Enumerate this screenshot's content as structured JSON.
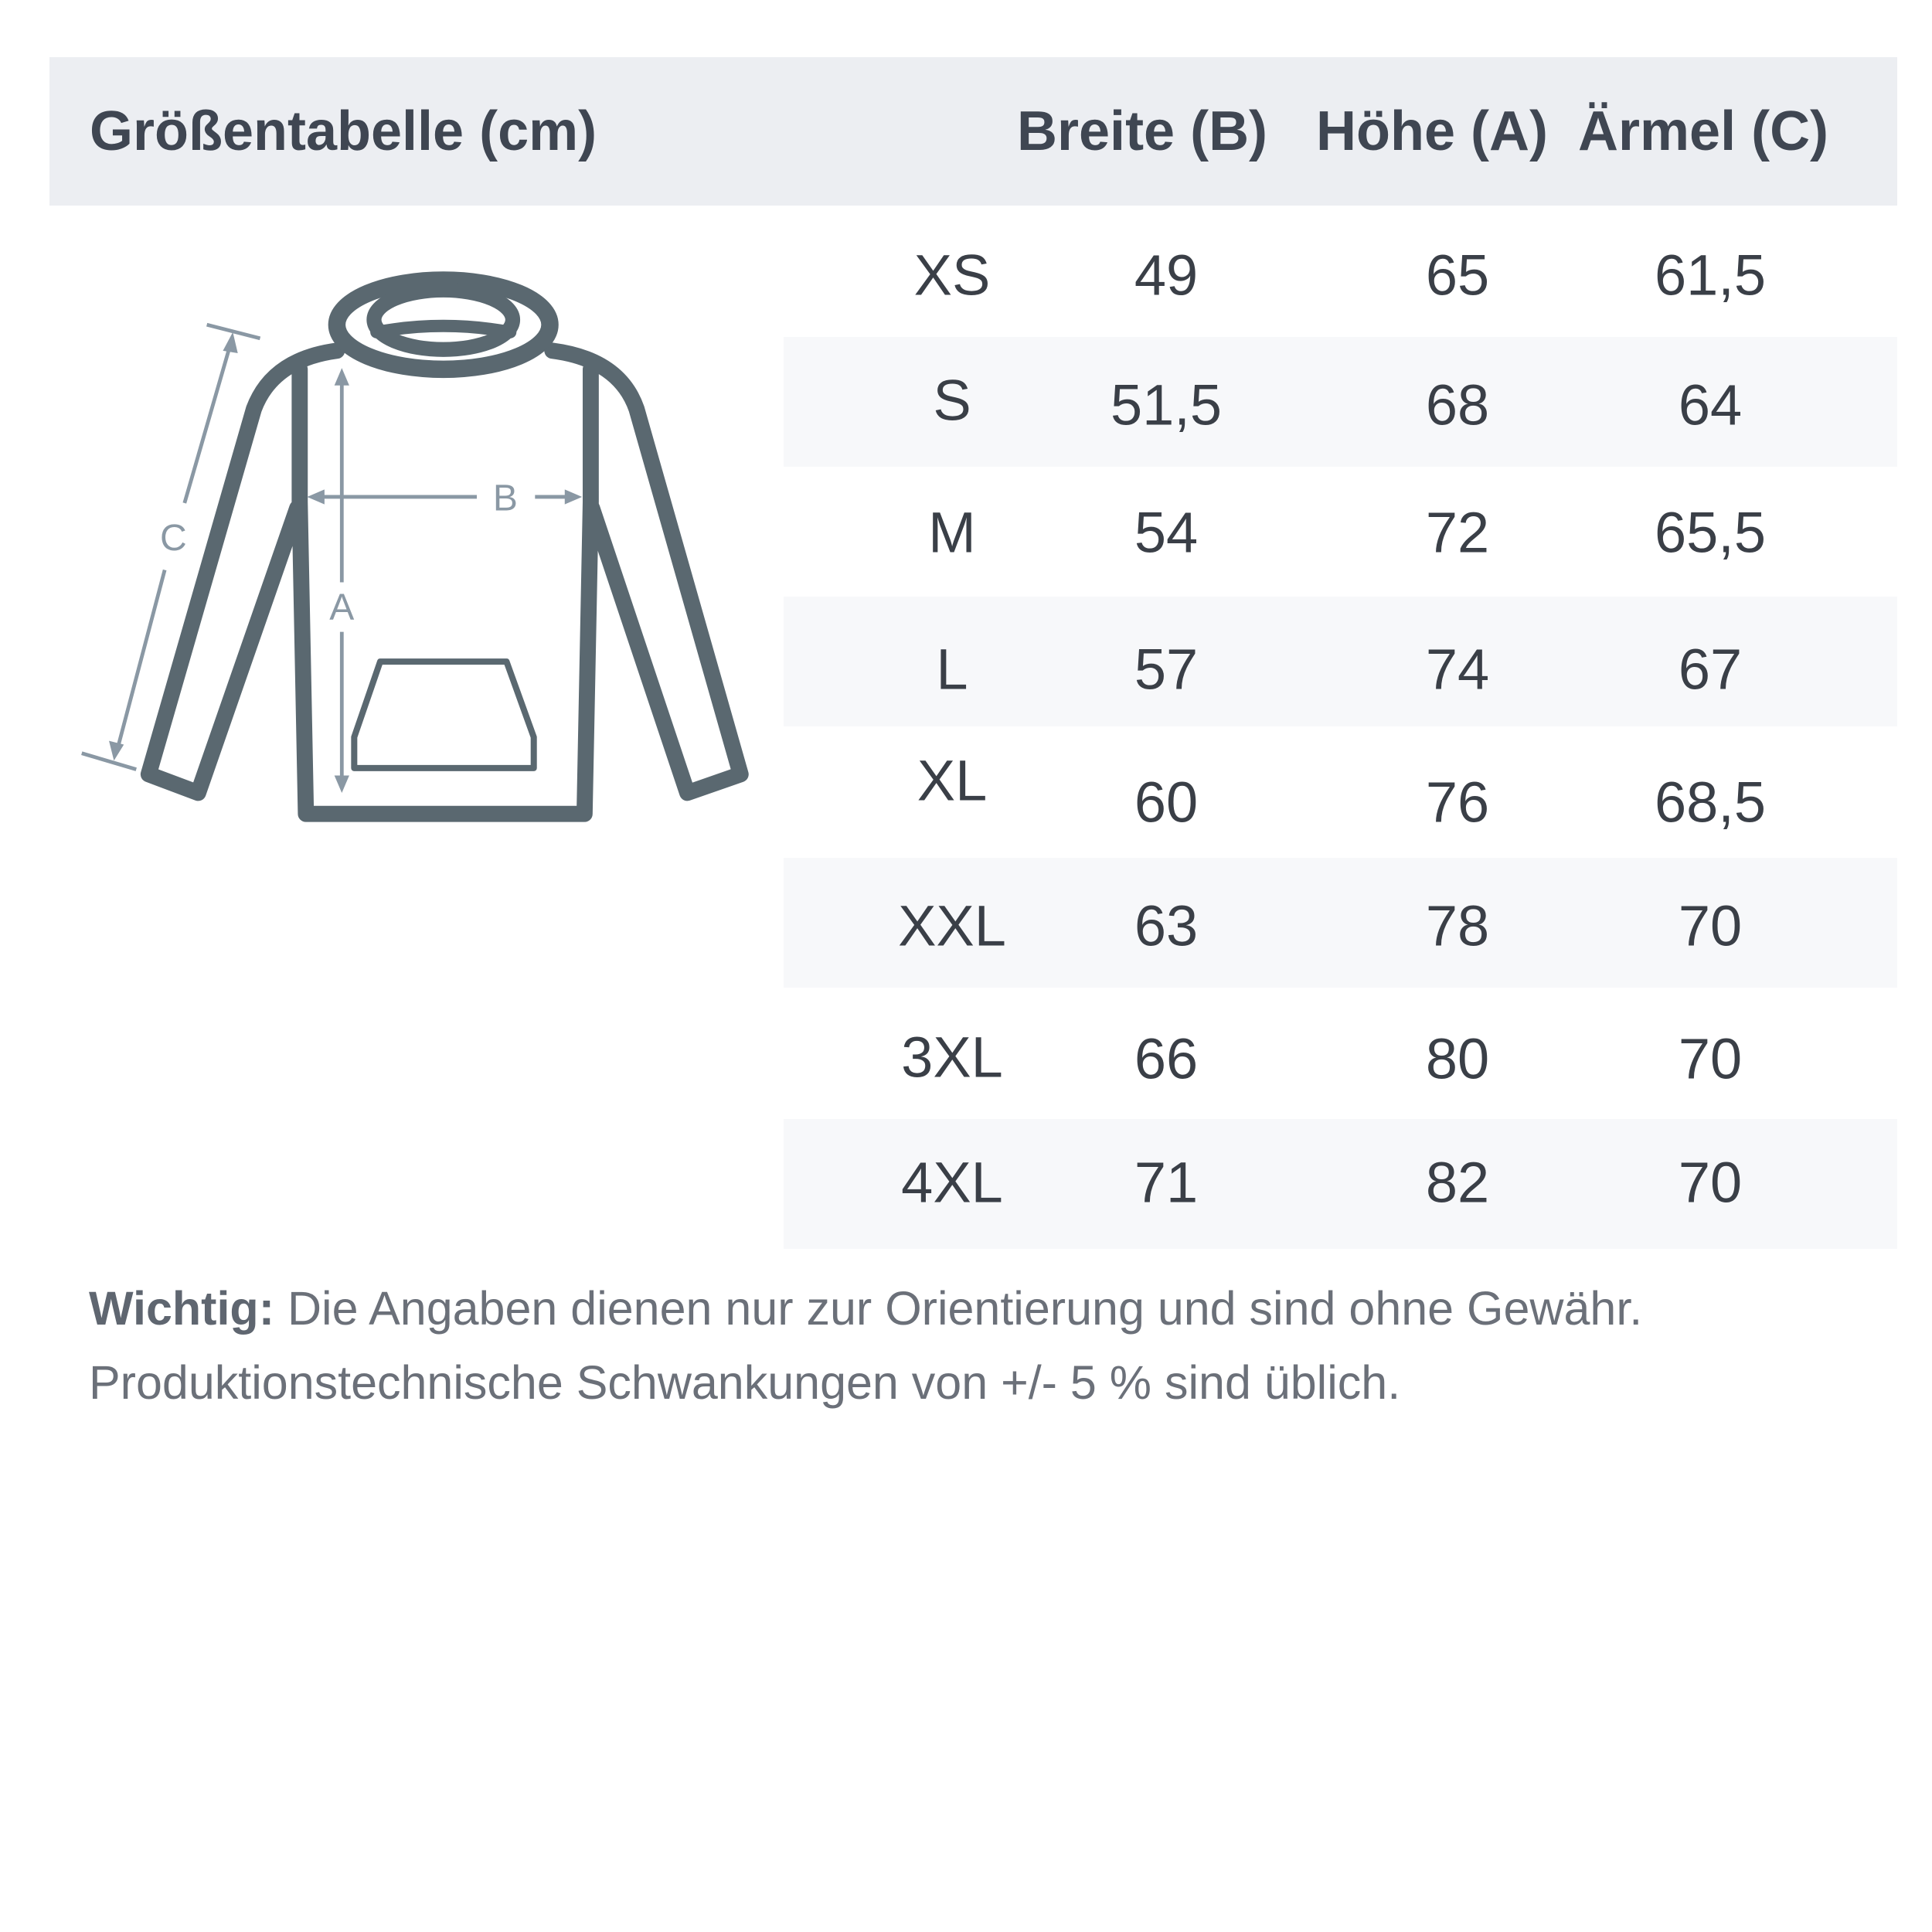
{
  "header": {
    "title": "Größentabelle (cm)",
    "col_width": "Breite (B)",
    "col_height": "Höhe (A)",
    "col_sleeve": "Ärmel (C)"
  },
  "diagram": {
    "label_a": "A",
    "label_b": "B",
    "label_c": "C",
    "outline_color": "#5a6870",
    "arrow_color": "#8a98a4"
  },
  "rows": [
    {
      "size": "XS",
      "width": "49",
      "height": "65",
      "sleeve": "61,5"
    },
    {
      "size": "S",
      "width": "51,5",
      "height": "68",
      "sleeve": "64"
    },
    {
      "size": "M",
      "width": "54",
      "height": "72",
      "sleeve": "65,5"
    },
    {
      "size": "L",
      "width": "57",
      "height": "74",
      "sleeve": "67"
    },
    {
      "size": "XL",
      "width": "60",
      "height": "76",
      "sleeve": "68,5"
    },
    {
      "size": "XXL",
      "width": "63",
      "height": "78",
      "sleeve": "70"
    },
    {
      "size": "3XL",
      "width": "66",
      "height": "80",
      "sleeve": "70"
    },
    {
      "size": "4XL",
      "width": "71",
      "height": "82",
      "sleeve": "70"
    }
  ],
  "note": {
    "label": "Wichtig:",
    "line1": "Die Angaben dienen nur zur Orientierung und sind ohne Gewähr.",
    "line2": "Produktionstechnische Schwankungen von +/- 5 % sind üblich."
  }
}
